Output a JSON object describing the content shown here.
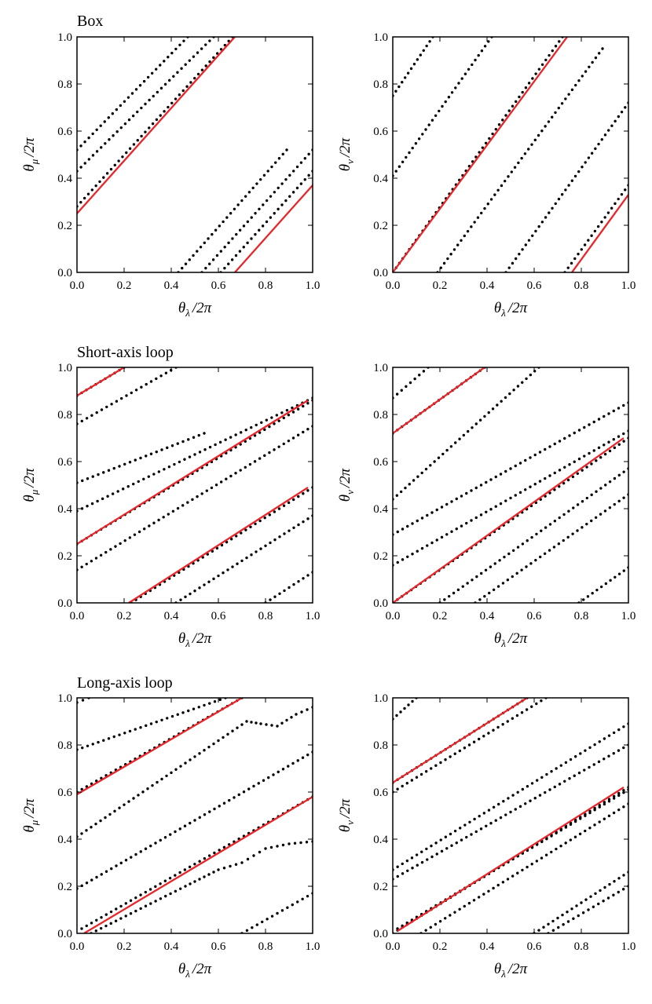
{
  "figure": {
    "row_titles": [
      "Box",
      "Short-axis loop",
      "Long-axis loop"
    ]
  },
  "colors": {
    "dots": "#000000",
    "fit_line": "#e8262a",
    "axes": "#000000",
    "background": "#ffffff"
  },
  "axis_text": {
    "theta": "θ",
    "x_subscript": "λ",
    "y_subscript_left": "μ",
    "y_subscript_right": "ν",
    "over": "/2π"
  },
  "chart_data": [
    {
      "id": "box-mu",
      "type": "scatter",
      "title": "Box",
      "xlabel": "θλ/2π",
      "ylabel": "θμ/2π",
      "xlim": [
        0,
        1
      ],
      "ylim": [
        0,
        1
      ],
      "xticks": [
        "0.0",
        "0.2",
        "0.4",
        "0.6",
        "0.8",
        "1.0"
      ],
      "yticks": [
        "0.0",
        "0.2",
        "0.4",
        "0.6",
        "0.8",
        "1.0"
      ],
      "dot_series": [
        {
          "start": [
            0.0,
            0.52
          ],
          "end": [
            0.47,
            1.0
          ]
        },
        {
          "start": [
            0.0,
            0.43
          ],
          "end": [
            0.58,
            1.0
          ]
        },
        {
          "start": [
            0.0,
            0.28
          ],
          "end": [
            0.66,
            1.0
          ]
        },
        {
          "start": [
            0.43,
            0.0
          ],
          "end": [
            0.89,
            0.52
          ]
        },
        {
          "start": [
            0.53,
            0.0
          ],
          "end": [
            1.0,
            0.52
          ]
        },
        {
          "start": [
            0.61,
            0.0
          ],
          "end": [
            1.0,
            0.43
          ]
        }
      ],
      "lines": [
        {
          "start": [
            0.0,
            0.25
          ],
          "end": [
            0.67,
            1.0
          ]
        },
        {
          "start": [
            0.67,
            0.0
          ],
          "end": [
            1.0,
            0.37
          ]
        }
      ]
    },
    {
      "id": "box-nu",
      "type": "scatter",
      "title": "",
      "xlabel": "θλ/2π",
      "ylabel": "θν/2π",
      "xlim": [
        0,
        1
      ],
      "ylim": [
        0,
        1
      ],
      "xticks": [
        "0.0",
        "0.2",
        "0.4",
        "0.6",
        "0.8",
        "1.0"
      ],
      "yticks": [
        "0.0",
        "0.2",
        "0.4",
        "0.6",
        "0.8",
        "1.0"
      ],
      "dot_series": [
        {
          "start": [
            0.0,
            0.75
          ],
          "end": [
            0.17,
            1.0
          ]
        },
        {
          "start": [
            0.0,
            0.41
          ],
          "end": [
            0.42,
            1.0
          ]
        },
        {
          "start": [
            0.0,
            0.0
          ],
          "end": [
            0.72,
            1.0
          ]
        },
        {
          "start": [
            0.19,
            0.0
          ],
          "end": [
            0.89,
            0.95
          ]
        },
        {
          "start": [
            0.48,
            0.0
          ],
          "end": [
            1.0,
            0.72
          ]
        },
        {
          "start": [
            0.73,
            0.0
          ],
          "end": [
            1.0,
            0.37
          ]
        }
      ],
      "lines": [
        {
          "start": [
            0.0,
            0.0
          ],
          "end": [
            0.74,
            1.0
          ]
        },
        {
          "start": [
            0.76,
            0.0
          ],
          "end": [
            1.0,
            0.33
          ]
        }
      ]
    },
    {
      "id": "short-mu",
      "type": "scatter",
      "title": "Short-axis loop",
      "xlabel": "θλ/2π",
      "ylabel": "θμ/2π",
      "xlim": [
        0,
        1
      ],
      "ylim": [
        0,
        1
      ],
      "xticks": [
        "0.0",
        "0.2",
        "0.4",
        "0.6",
        "0.8",
        "1.0"
      ],
      "yticks": [
        "0.0",
        "0.2",
        "0.4",
        "0.6",
        "0.8",
        "1.0"
      ],
      "dot_series": [
        {
          "start": [
            0.0,
            0.88
          ],
          "end": [
            0.2,
            1.0
          ]
        },
        {
          "start": [
            0.0,
            0.76
          ],
          "end": [
            0.42,
            1.0
          ]
        },
        {
          "start": [
            0.0,
            0.51
          ],
          "end": [
            0.54,
            0.72
          ]
        },
        {
          "start": [
            0.0,
            0.39
          ],
          "end": [
            1.0,
            0.87
          ]
        },
        {
          "start": [
            0.0,
            0.25
          ],
          "end": [
            1.0,
            0.86
          ]
        },
        {
          "start": [
            0.0,
            0.14
          ],
          "end": [
            1.0,
            0.75
          ]
        },
        {
          "start": [
            0.23,
            0.0
          ],
          "end": [
            1.0,
            0.49
          ]
        },
        {
          "start": [
            0.42,
            0.0
          ],
          "end": [
            1.0,
            0.37
          ]
        },
        {
          "start": [
            0.8,
            0.0
          ],
          "end": [
            1.0,
            0.13
          ]
        }
      ],
      "lines": [
        {
          "start": [
            0.0,
            0.88
          ],
          "end": [
            0.2,
            1.0
          ]
        },
        {
          "start": [
            0.0,
            0.25
          ],
          "end": [
            0.98,
            0.86
          ]
        },
        {
          "start": [
            0.22,
            0.0
          ],
          "end": [
            0.98,
            0.49
          ]
        }
      ]
    },
    {
      "id": "short-nu",
      "type": "scatter",
      "title": "",
      "xlabel": "θλ/2π",
      "ylabel": "θν/2π",
      "xlim": [
        0,
        1
      ],
      "ylim": [
        0,
        1
      ],
      "xticks": [
        "0.0",
        "0.2",
        "0.4",
        "0.6",
        "0.8",
        "1.0"
      ],
      "yticks": [
        "0.0",
        "0.2",
        "0.4",
        "0.6",
        "0.8",
        "1.0"
      ],
      "dot_series": [
        {
          "start": [
            0.0,
            0.87
          ],
          "end": [
            0.15,
            1.0
          ]
        },
        {
          "start": [
            0.0,
            0.72
          ],
          "end": [
            0.39,
            1.0
          ]
        },
        {
          "start": [
            0.0,
            0.44
          ],
          "end": [
            0.62,
            1.0
          ]
        },
        {
          "start": [
            0.0,
            0.29
          ],
          "end": [
            1.0,
            0.85
          ]
        },
        {
          "start": [
            0.0,
            0.16
          ],
          "end": [
            1.0,
            0.73
          ]
        },
        {
          "start": [
            0.0,
            0.0
          ],
          "end": [
            1.0,
            0.7
          ]
        },
        {
          "start": [
            0.2,
            0.0
          ],
          "end": [
            1.0,
            0.57
          ]
        },
        {
          "start": [
            0.35,
            0.0
          ],
          "end": [
            1.0,
            0.46
          ]
        },
        {
          "start": [
            0.79,
            0.0
          ],
          "end": [
            1.0,
            0.15
          ]
        }
      ],
      "lines": [
        {
          "start": [
            0.0,
            0.72
          ],
          "end": [
            0.39,
            1.0
          ]
        },
        {
          "start": [
            0.0,
            0.0
          ],
          "end": [
            0.98,
            0.7
          ]
        }
      ]
    },
    {
      "id": "long-mu",
      "type": "scatter",
      "title": "Long-axis loop",
      "xlabel": "θλ/2π",
      "ylabel": "θμ/2π",
      "xlim": [
        0,
        1
      ],
      "ylim": [
        0,
        1
      ],
      "xticks": [
        "0.0",
        "0.2",
        "0.4",
        "0.6",
        "0.8",
        "1.0"
      ],
      "yticks": [
        "0.0",
        "0.2",
        "0.4",
        "0.6",
        "0.8",
        "1.0"
      ],
      "dot_series": [
        {
          "start": [
            0.0,
            0.98
          ],
          "end": [
            0.05,
            1.0
          ]
        },
        {
          "start": [
            0.0,
            0.78
          ],
          "end": [
            0.63,
            1.0
          ]
        },
        {
          "start": [
            0.0,
            0.6
          ],
          "end": [
            0.7,
            1.0
          ]
        },
        {
          "start": [
            0.0,
            0.41
          ],
          "end": [
            0.72,
            0.9
          ],
          "wiggle": [
            [
              0.78,
              0.89
            ],
            [
              0.85,
              0.88
            ],
            [
              0.93,
              0.93
            ],
            [
              1.0,
              0.96
            ]
          ]
        },
        {
          "start": [
            0.0,
            0.19
          ],
          "end": [
            1.0,
            0.77
          ]
        },
        {
          "start": [
            0.02,
            0.02
          ],
          "end": [
            1.0,
            0.58
          ]
        },
        {
          "start": [
            0.06,
            0.0
          ],
          "end": [
            0.46,
            0.2
          ],
          "wiggle": [
            [
              0.6,
              0.27
            ],
            [
              0.7,
              0.3
            ],
            [
              0.75,
              0.33
            ],
            [
              0.8,
              0.36
            ],
            [
              0.9,
              0.38
            ],
            [
              1.0,
              0.39
            ]
          ]
        },
        {
          "start": [
            0.7,
            0.0
          ],
          "end": [
            1.0,
            0.17
          ]
        }
      ],
      "lines": [
        {
          "start": [
            0.0,
            0.59
          ],
          "end": [
            0.7,
            1.0
          ]
        },
        {
          "start": [
            0.03,
            0.0
          ],
          "end": [
            1.0,
            0.58
          ]
        }
      ]
    },
    {
      "id": "long-nu",
      "type": "scatter",
      "title": "",
      "xlabel": "θλ/2π",
      "ylabel": "θν/2π",
      "xlim": [
        0,
        1
      ],
      "ylim": [
        0,
        1
      ],
      "xticks": [
        "0.0",
        "0.2",
        "0.4",
        "0.6",
        "0.8",
        "1.0"
      ],
      "yticks": [
        "0.0",
        "0.2",
        "0.4",
        "0.6",
        "0.8",
        "1.0"
      ],
      "dot_series": [
        {
          "start": [
            0.0,
            0.91
          ],
          "end": [
            0.1,
            1.0
          ]
        },
        {
          "start": [
            0.0,
            0.64
          ],
          "end": [
            0.57,
            1.0
          ]
        },
        {
          "start": [
            0.0,
            0.6
          ],
          "end": [
            0.65,
            1.0
          ]
        },
        {
          "start": [
            0.0,
            0.27
          ],
          "end": [
            1.0,
            0.89
          ]
        },
        {
          "start": [
            0.0,
            0.23
          ],
          "end": [
            1.0,
            0.8
          ]
        },
        {
          "start": [
            0.0,
            0.0
          ],
          "end": [
            1.0,
            0.62
          ]
        },
        {
          "start": [
            0.02,
            0.02
          ],
          "end": [
            1.0,
            0.61
          ]
        },
        {
          "start": [
            0.12,
            0.0
          ],
          "end": [
            1.0,
            0.55
          ]
        },
        {
          "start": [
            0.6,
            0.0
          ],
          "end": [
            1.0,
            0.26
          ]
        },
        {
          "start": [
            0.66,
            0.0
          ],
          "end": [
            1.0,
            0.2
          ]
        }
      ],
      "lines": [
        {
          "start": [
            0.0,
            0.64
          ],
          "end": [
            0.57,
            1.0
          ]
        },
        {
          "start": [
            0.02,
            0.01
          ],
          "end": [
            0.98,
            0.62
          ]
        }
      ]
    }
  ]
}
